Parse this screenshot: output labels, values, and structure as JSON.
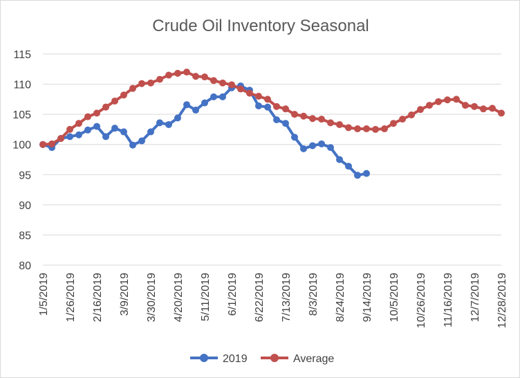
{
  "chart_data": {
    "type": "line",
    "title": "Crude Oil Inventory Seasonal",
    "xlabel": "",
    "ylabel": "",
    "ylim": [
      80,
      115
    ],
    "yticks": [
      80,
      85,
      90,
      95,
      100,
      105,
      110,
      115
    ],
    "grid": "horizontal",
    "legend_position": "bottom",
    "x_tick_labels": [
      "1/5/2019",
      "1/26/2019",
      "2/16/2019",
      "3/9/2019",
      "3/30/2019",
      "4/20/2019",
      "5/11/2019",
      "6/1/2019",
      "6/22/2019",
      "7/13/2019",
      "8/3/2019",
      "8/24/2019",
      "9/14/2019",
      "10/5/2019",
      "10/26/2019",
      "11/16/2019",
      "12/7/2019",
      "12/28/2019"
    ],
    "x_tick_step": 3,
    "series": [
      {
        "name": "2019",
        "color": "#4472c4",
        "values": [
          100.0,
          99.5,
          101.0,
          101.3,
          101.6,
          102.4,
          103.0,
          101.3,
          102.7,
          102.1,
          99.9,
          100.6,
          102.1,
          103.6,
          103.3,
          104.4,
          106.6,
          105.7,
          106.9,
          107.9,
          107.9,
          109.4,
          109.7,
          109.0,
          106.4,
          106.2,
          104.1,
          103.5,
          101.2,
          99.3,
          99.8,
          100.1,
          99.5,
          97.5,
          96.4,
          94.9,
          95.2
        ]
      },
      {
        "name": "Average",
        "color": "#c0504d",
        "values": [
          100.0,
          100.1,
          101.0,
          102.5,
          103.5,
          104.6,
          105.2,
          106.2,
          107.2,
          108.2,
          109.3,
          110.1,
          110.2,
          110.8,
          111.5,
          111.8,
          112.0,
          111.3,
          111.2,
          110.6,
          110.2,
          109.9,
          109.2,
          108.5,
          108.0,
          107.5,
          106.3,
          105.9,
          105.0,
          104.7,
          104.3,
          104.2,
          103.6,
          103.3,
          102.8,
          102.6,
          102.6,
          102.5,
          102.6,
          103.5,
          104.2,
          104.9,
          105.8,
          106.5,
          107.1,
          107.4,
          107.5,
          106.5,
          106.3,
          105.9,
          106.0,
          105.2
        ]
      }
    ]
  }
}
